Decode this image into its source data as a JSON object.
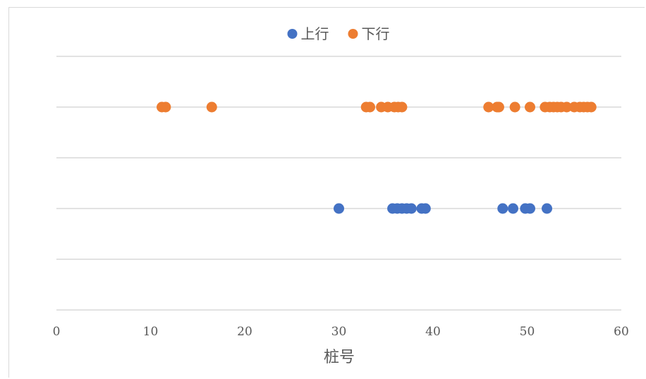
{
  "chart_data": {
    "type": "scatter",
    "title": "",
    "xlabel": "桩号",
    "ylabel": "",
    "xlim": [
      0,
      60
    ],
    "x_ticks": [
      0,
      10,
      20,
      30,
      40,
      50,
      60
    ],
    "ylim": [
      0,
      5
    ],
    "y_gridlines": [
      0,
      1,
      2,
      3,
      4,
      5
    ],
    "grid": true,
    "legend_position": "top-center",
    "series": [
      {
        "name": "上行",
        "color": "#4472C4",
        "x": [
          30.0,
          35.7,
          36.2,
          36.7,
          37.2,
          37.7,
          38.8,
          39.2,
          47.4,
          48.5,
          49.8,
          50.3,
          52.1
        ],
        "y": [
          2,
          2,
          2,
          2,
          2,
          2,
          2,
          2,
          2,
          2,
          2,
          2,
          2
        ]
      },
      {
        "name": "下行",
        "color": "#ED7D31",
        "x": [
          11.2,
          11.6,
          16.5,
          32.9,
          33.3,
          34.5,
          35.2,
          35.9,
          36.3,
          36.7,
          45.9,
          46.8,
          47.0,
          48.7,
          50.3,
          51.9,
          52.4,
          52.8,
          53.2,
          53.6,
          54.2,
          55.0,
          55.6,
          56.0,
          56.4,
          56.8
        ],
        "y": [
          4,
          4,
          4,
          4,
          4,
          4,
          4,
          4,
          4,
          4,
          4,
          4,
          4,
          4,
          4,
          4,
          4,
          4,
          4,
          4,
          4,
          4,
          4,
          4,
          4,
          4
        ]
      }
    ]
  }
}
